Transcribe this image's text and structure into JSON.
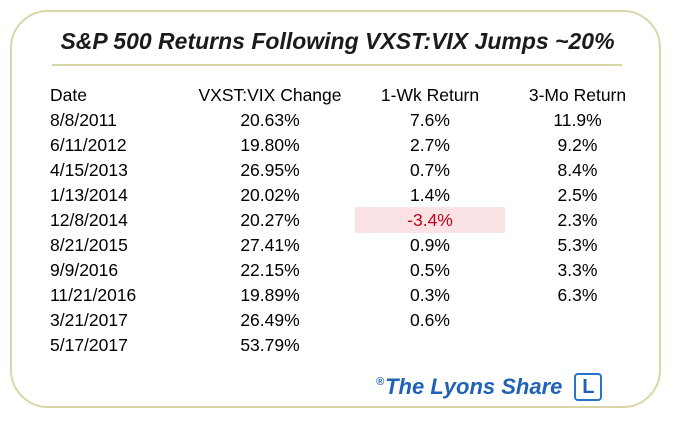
{
  "title": "S&P 500 Returns Following VXST:VIX Jumps ~20%",
  "headers": {
    "date": "Date",
    "vix": "VXST:VIX Change",
    "wk": "1-Wk Return",
    "mo": "3-Mo Return"
  },
  "rows": [
    {
      "date": "8/8/2011",
      "vix": "20.63%",
      "wk": "7.6%",
      "mo": "11.9%"
    },
    {
      "date": "6/11/2012",
      "vix": "19.80%",
      "wk": "2.7%",
      "mo": "9.2%"
    },
    {
      "date": "4/15/2013",
      "vix": "26.95%",
      "wk": "0.7%",
      "mo": "8.4%"
    },
    {
      "date": "1/13/2014",
      "vix": "20.02%",
      "wk": "1.4%",
      "mo": "2.5%"
    },
    {
      "date": "12/8/2014",
      "vix": "20.27%",
      "wk": "-3.4%",
      "mo": "2.3%"
    },
    {
      "date": "8/21/2015",
      "vix": "27.41%",
      "wk": "0.9%",
      "mo": "5.3%"
    },
    {
      "date": "9/9/2016",
      "vix": "22.15%",
      "wk": "0.5%",
      "mo": "3.3%"
    },
    {
      "date": "11/21/2016",
      "vix": "19.89%",
      "wk": "0.3%",
      "mo": "6.3%"
    },
    {
      "date": "3/21/2017",
      "vix": "26.49%",
      "wk": "0.6%",
      "mo": ""
    },
    {
      "date": "5/17/2017",
      "vix": "53.79%",
      "wk": "",
      "mo": ""
    }
  ],
  "footer": {
    "registered": "®",
    "brand": "The Lyons Share",
    "logo_letter": "L"
  },
  "colors": {
    "border": "#d9d6a8",
    "negative_text": "#c0001a",
    "negative_highlight": "#fbe2e4",
    "brand": "#1f62b8"
  }
}
